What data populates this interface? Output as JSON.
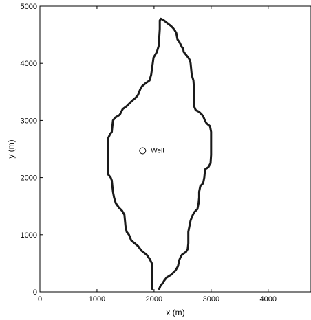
{
  "chart_data": {
    "type": "line",
    "title": "",
    "xlabel": "x (m)",
    "ylabel": "y (m)",
    "xlim": [
      0,
      4750
    ],
    "ylim": [
      0,
      5000
    ],
    "grid": false,
    "x_ticks": [
      0,
      1000,
      2000,
      3000,
      4000
    ],
    "x_tick_labels": [
      "0",
      "1000",
      "2000",
      "3000",
      "4000"
    ],
    "y_ticks": [
      0,
      1000,
      2000,
      3000,
      4000,
      5000
    ],
    "y_tick_labels": [
      "0",
      "1000",
      "2000",
      "3000",
      "4000",
      "5000"
    ],
    "series": [
      {
        "x": [
          1970,
          1970,
          1960,
          1920,
          1870,
          1780,
          1720,
          1660,
          1600,
          1560,
          1520,
          1500,
          1490,
          1480,
          1440,
          1380,
          1330,
          1300,
          1280,
          1270,
          1260,
          1240,
          1200,
          1190,
          1190,
          1200,
          1230,
          1260,
          1270,
          1280,
          1320,
          1400,
          1450,
          1520,
          1570,
          1620,
          1680,
          1720,
          1740,
          1760,
          1790,
          1850,
          1920,
          1950,
          1970,
          1990,
          2050,
          2080,
          2090,
          2100,
          2100,
          2120,
          2160,
          2200,
          2250,
          2290,
          2330,
          2360,
          2390,
          2400,
          2410,
          2440,
          2470,
          2490,
          2510,
          2520,
          2560,
          2600,
          2630,
          2640,
          2650,
          2660,
          2690,
          2700,
          2700,
          2700,
          2730,
          2790,
          2840,
          2870,
          2890,
          2920,
          2980,
          3000,
          3000,
          3000,
          2990,
          2950,
          2900,
          2890,
          2880,
          2860,
          2810,
          2790,
          2790,
          2780,
          2760,
          2710,
          2680,
          2660,
          2640,
          2620,
          2600,
          2600,
          2600,
          2590,
          2560,
          2490,
          2460,
          2440,
          2420,
          2380,
          2300,
          2220,
          2180,
          2150,
          2110,
          2090
        ],
        "y": [
          50,
          250,
          500,
          580,
          650,
          720,
          800,
          850,
          900,
          1000,
          1050,
          1150,
          1250,
          1350,
          1420,
          1480,
          1550,
          1650,
          1750,
          1850,
          1950,
          2000,
          2050,
          2200,
          2450,
          2700,
          2760,
          2800,
          2900,
          3000,
          3050,
          3100,
          3200,
          3250,
          3300,
          3350,
          3400,
          3450,
          3500,
          3550,
          3600,
          3650,
          3700,
          3800,
          3950,
          4100,
          4200,
          4300,
          4450,
          4600,
          4750,
          4780,
          4760,
          4730,
          4690,
          4660,
          4620,
          4580,
          4530,
          4470,
          4420,
          4380,
          4320,
          4280,
          4260,
          4200,
          4150,
          4100,
          4050,
          4000,
          3900,
          3800,
          3700,
          3550,
          3400,
          3250,
          3180,
          3150,
          3100,
          3050,
          3000,
          2950,
          2900,
          2800,
          2600,
          2400,
          2250,
          2180,
          2150,
          2100,
          2000,
          1900,
          1850,
          1750,
          1650,
          1550,
          1450,
          1400,
          1350,
          1300,
          1250,
          1150,
          1050,
          950,
          850,
          750,
          700,
          650,
          600,
          550,
          450,
          380,
          300,
          250,
          200,
          150,
          100,
          50
        ]
      }
    ],
    "annotations": [
      {
        "text": "Well",
        "x": 1800,
        "y": 2470
      }
    ]
  }
}
